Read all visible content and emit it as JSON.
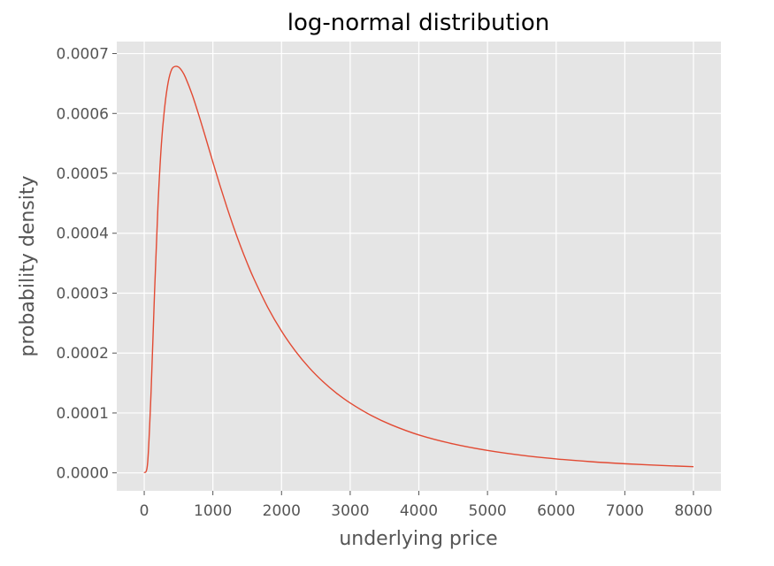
{
  "chart_data": {
    "type": "line",
    "title": "log-normal distribution",
    "xlabel": "underlying price",
    "ylabel": "probability density",
    "xlim": [
      -400,
      8400
    ],
    "ylim": [
      -3e-05,
      0.00072
    ],
    "xticks": [
      0,
      1000,
      2000,
      3000,
      4000,
      5000,
      6000,
      7000,
      8000
    ],
    "yticks": [
      "0.0000",
      "0.0001",
      "0.0002",
      "0.0003",
      "0.0004",
      "0.0005",
      "0.0006",
      "0.0007"
    ],
    "grid": true,
    "background_color": "#e5e5e5",
    "series": [
      {
        "color": "#e24a33",
        "x": [
          0,
          50,
          100,
          150,
          200,
          250,
          300,
          350,
          400,
          450,
          500,
          550,
          600,
          700,
          800,
          900,
          1000,
          1100,
          1200,
          1300,
          1400,
          1500,
          1600,
          1800,
          2000,
          2200,
          2400,
          2600,
          2800,
          3000,
          3300,
          3600,
          4000,
          4500,
          5000,
          5500,
          6000,
          6500,
          7000,
          7500,
          8000
        ],
        "y": [
          0.0,
          1.74e-05,
          0.0001359,
          0.0003007,
          0.0004454,
          0.0005489,
          0.0006125,
          0.0006528,
          0.0006735,
          0.0006785,
          0.0006774,
          0.0006709,
          0.0006603,
          0.0006309,
          0.0005955,
          0.0005574,
          0.0005187,
          0.0004809,
          0.0004449,
          0.0004109,
          0.0003793,
          0.0003502,
          0.0003234,
          0.0002761,
          0.0002366,
          0.0002036,
          0.0001759,
          0.0001527,
          0.0001331,
          0.0001166,
          9.62e-05,
          8.01e-05,
          6.33e-05,
          4.83e-05,
          3.74e-05,
          2.93e-05,
          2.33e-05,
          1.87e-05,
          1.52e-05,
          1.25e-05,
          1.03e-05
        ]
      }
    ]
  }
}
